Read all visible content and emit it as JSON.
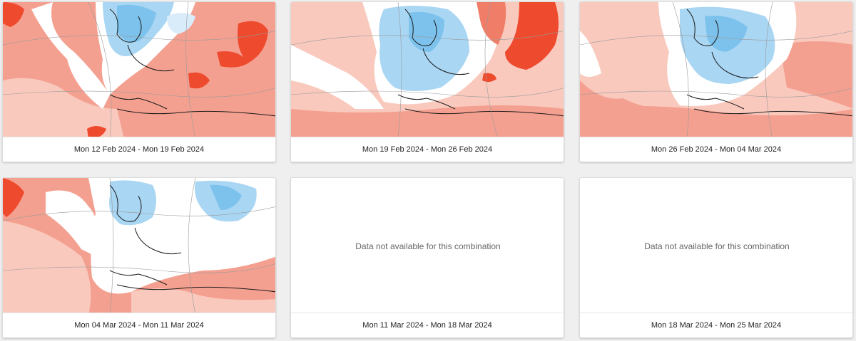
{
  "cards": [
    {
      "period": "Mon 12 Feb 2024 - Mon 19 Feb 2024",
      "available": true
    },
    {
      "period": "Mon 19 Feb 2024 - Mon 26 Feb 2024",
      "available": true
    },
    {
      "period": "Mon 26 Feb 2024 - Mon 04 Mar 2024",
      "available": true
    },
    {
      "period": "Mon 04 Mar 2024 - Mon 11 Mar 2024",
      "available": true
    },
    {
      "period": "Mon 11 Mar 2024 - Mon 18 Mar 2024",
      "available": false,
      "message": "Data not available for this combination"
    },
    {
      "period": "Mon 18 Mar 2024 - Mon 25 Mar 2024",
      "available": false,
      "message": "Data not available for this combination"
    }
  ],
  "colors": {
    "warm_light": "#f9c9bd",
    "warm_mid": "#f4a090",
    "warm_strong": "#f07d68",
    "warm_extreme": "#ee4a2e",
    "cold_light": "#d9ecfa",
    "cold_mid": "#a9d6f3",
    "cold_strong": "#7cc2ec",
    "coast": "#1a1a1a",
    "border": "#9a9a9a"
  },
  "map_icon": "weekly-anomaly-map-europe"
}
